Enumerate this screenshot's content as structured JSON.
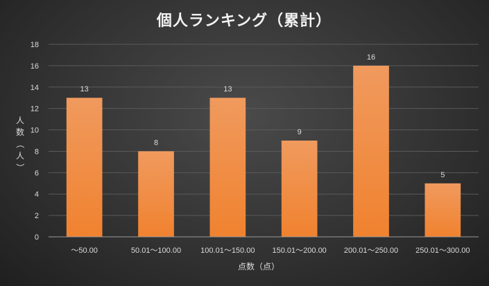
{
  "chart_data": {
    "type": "bar",
    "title": "個人ランキング（累計）",
    "xlabel": "点数（点）",
    "ylabel": "人数（人）",
    "categories": [
      "～50.00",
      "50.01～100.00",
      "100.01～150.00",
      "150.01～200.00",
      "200.01～250.00",
      "250.01～300.00"
    ],
    "values": [
      13,
      8,
      13,
      9,
      16,
      5
    ],
    "ylim": [
      0,
      18
    ],
    "yticks": [
      0,
      2,
      4,
      6,
      8,
      10,
      12,
      14,
      16,
      18
    ],
    "grid": true,
    "data_labels": true,
    "bar_color": "#f0822f",
    "bar_color_top": "#f09a5e"
  }
}
